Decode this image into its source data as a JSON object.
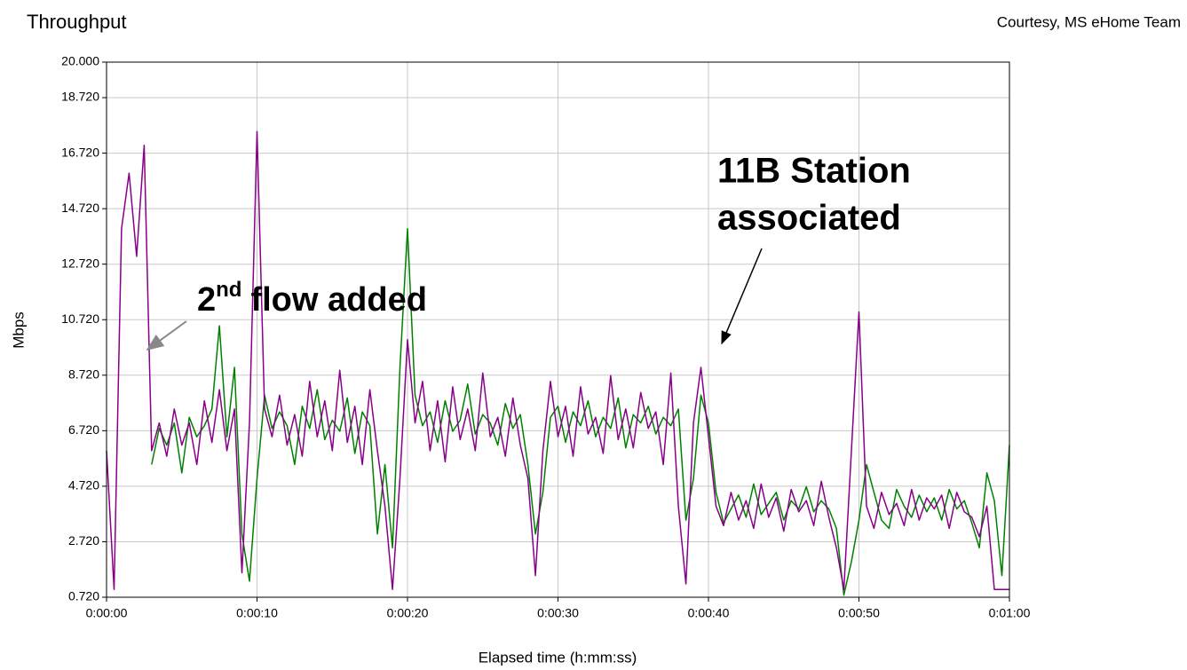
{
  "chart_data": {
    "type": "line",
    "title": "Throughput",
    "subtitle": "Courtesy, MS eHome Team",
    "xlabel": "Elapsed time (h:mm:ss)",
    "ylabel": "Mbps",
    "annotations": [
      {
        "base": "2",
        "sup": "nd",
        "rest": "flow added"
      },
      {
        "lines": [
          "11B Station",
          "associated"
        ]
      }
    ],
    "grid": true,
    "xlim": [
      0,
      60
    ],
    "ylim": [
      0.72,
      20
    ],
    "xticks": [
      {
        "value": 0,
        "label": "0:00:00"
      },
      {
        "value": 10,
        "label": "0:00:10"
      },
      {
        "value": 20,
        "label": "0:00:20"
      },
      {
        "value": 30,
        "label": "0:00:30"
      },
      {
        "value": 40,
        "label": "0:00:40"
      },
      {
        "value": 50,
        "label": "0:00:50"
      },
      {
        "value": 60,
        "label": "0:01:00"
      }
    ],
    "yticks": [
      {
        "value": 0.72,
        "label": "0.720"
      },
      {
        "value": 2.72,
        "label": "2.720"
      },
      {
        "value": 4.72,
        "label": "4.720"
      },
      {
        "value": 6.72,
        "label": "6.720"
      },
      {
        "value": 8.72,
        "label": "8.720"
      },
      {
        "value": 10.72,
        "label": "10.720"
      },
      {
        "value": 12.72,
        "label": "12.720"
      },
      {
        "value": 14.72,
        "label": "14.720"
      },
      {
        "value": 16.72,
        "label": "16.720"
      },
      {
        "value": 18.72,
        "label": "18.720"
      },
      {
        "value": 20,
        "label": "20.000"
      }
    ],
    "x": [
      0,
      0.5,
      1,
      1.5,
      2,
      2.5,
      3,
      3.5,
      4,
      4.5,
      5,
      5.5,
      6,
      6.5,
      7,
      7.5,
      8,
      8.5,
      9,
      9.5,
      10,
      10.5,
      11,
      11.5,
      12,
      12.5,
      13,
      13.5,
      14,
      14.5,
      15,
      15.5,
      16,
      16.5,
      17,
      17.5,
      18,
      18.5,
      19,
      19.5,
      20,
      20.5,
      21,
      21.5,
      22,
      22.5,
      23,
      23.5,
      24,
      24.5,
      25,
      25.5,
      26,
      26.5,
      27,
      27.5,
      28,
      28.5,
      29,
      29.5,
      30,
      30.5,
      31,
      31.5,
      32,
      32.5,
      33,
      33.5,
      34,
      34.5,
      35,
      35.5,
      36,
      36.5,
      37,
      37.5,
      38,
      38.5,
      39,
      39.5,
      40,
      40.5,
      41,
      41.5,
      42,
      42.5,
      43,
      43.5,
      44,
      44.5,
      45,
      45.5,
      46,
      46.5,
      47,
      47.5,
      48,
      48.5,
      49,
      49.5,
      50,
      50.5,
      51,
      51.5,
      52,
      52.5,
      53,
      53.5,
      54,
      54.5,
      55,
      55.5,
      56,
      56.5,
      57,
      57.5,
      58,
      58.5,
      59,
      59.5,
      60
    ],
    "series": [
      {
        "color": "#008000",
        "values": [
          null,
          null,
          null,
          null,
          null,
          null,
          5.5,
          6.8,
          6.2,
          7,
          5.2,
          7.2,
          6.5,
          6.9,
          7.5,
          10.5,
          6.5,
          9,
          3,
          1.3,
          5,
          8,
          6.8,
          7.4,
          6.9,
          5.5,
          7.6,
          6.8,
          8.2,
          6.4,
          7.1,
          6.7,
          7.9,
          5.9,
          7.4,
          6.9,
          3,
          5.5,
          2.5,
          9,
          14,
          8,
          6.9,
          7.4,
          6.3,
          7.8,
          6.7,
          7.1,
          8.4,
          6.6,
          7.3,
          7.0,
          6.2,
          7.7,
          6.8,
          7.3,
          5.5,
          3,
          4.5,
          7.2,
          7.6,
          6.3,
          7.4,
          6.9,
          7.8,
          6.5,
          7.2,
          6.8,
          7.9,
          6.1,
          7.3,
          7.0,
          7.6,
          6.6,
          7.2,
          6.9,
          7.5,
          3.5,
          5,
          8,
          7,
          4.5,
          3.4,
          3.9,
          4.4,
          3.6,
          4.8,
          3.7,
          4.1,
          4.5,
          3.5,
          4.2,
          3.9,
          4.7,
          3.8,
          4.2,
          3.9,
          3.2,
          0.8,
          2,
          3.5,
          5.5,
          4.5,
          3.5,
          3.2,
          4.6,
          4.0,
          3.6,
          4.4,
          3.8,
          4.3,
          3.5,
          4.6,
          3.9,
          4.2,
          3.4,
          2.5,
          5.2,
          4.2,
          1.5,
          6.2
        ]
      },
      {
        "color": "#880088",
        "values": [
          6.0,
          1.0,
          14,
          16,
          13,
          17,
          6.0,
          7,
          5.8,
          7.5,
          6.2,
          7,
          5.5,
          7.8,
          6.3,
          8.2,
          6,
          7.5,
          1.6,
          7,
          17.5,
          7.5,
          6.5,
          8,
          6.2,
          7.3,
          5.8,
          8.5,
          6.5,
          7.8,
          6,
          8.9,
          6.3,
          7.6,
          5.5,
          8.2,
          6,
          4,
          1,
          5,
          10,
          7,
          8.5,
          6,
          7.8,
          5.6,
          8.3,
          6.4,
          7.5,
          6,
          8.8,
          6.5,
          7.2,
          5.8,
          7.9,
          6.2,
          5,
          1.5,
          6,
          8.5,
          6.5,
          7.6,
          5.8,
          8.3,
          6.6,
          7.2,
          5.9,
          8.7,
          6.4,
          7.5,
          6.1,
          8.1,
          6.8,
          7.4,
          5.5,
          8.8,
          4,
          1.2,
          7,
          9,
          6.5,
          4,
          3.3,
          4.5,
          3.5,
          4.2,
          3.2,
          4.8,
          3.6,
          4.3,
          3.1,
          4.6,
          3.8,
          4.2,
          3.3,
          4.9,
          3.6,
          2.5,
          1.0,
          6,
          11,
          4,
          3.2,
          4.5,
          3.7,
          4.1,
          3.3,
          4.6,
          3.5,
          4.3,
          3.9,
          4.4,
          3.2,
          4.5,
          3.8,
          3.6,
          2.9,
          4,
          1.0,
          1.0,
          1.0
        ]
      }
    ]
  }
}
